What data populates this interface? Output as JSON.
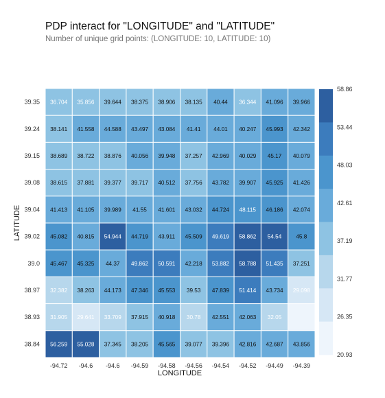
{
  "title": "PDP interact for \"LONGITUDE\" and \"LATITUDE\"",
  "subtitle": "Number of unique grid points: (LONGITUDE: 10, LATITUDE: 10)",
  "chart_data": {
    "type": "heatmap",
    "xlabel": "LONGITUDE",
    "ylabel": "LATITUDE",
    "x": [
      "-94.72",
      "-94.6",
      "-94.6",
      "-94.59",
      "-94.58",
      "-94.56",
      "-94.54",
      "-94.52",
      "-94.49",
      "-94.39"
    ],
    "y": [
      "39.35",
      "39.24",
      "39.15",
      "39.08",
      "39.04",
      "39.02",
      "39.0",
      "38.97",
      "38.93",
      "38.84"
    ],
    "values": [
      [
        "36.704",
        "35.856",
        "39.644",
        "38.375",
        "38.906",
        "38.135",
        "40.44",
        "36.344",
        "41.096",
        "39.966"
      ],
      [
        "38.141",
        "41.558",
        "44.588",
        "43.497",
        "43.084",
        "41.41",
        "44.01",
        "40.247",
        "45.993",
        "42.342"
      ],
      [
        "38.689",
        "38.722",
        "38.876",
        "40.056",
        "39.948",
        "37.257",
        "42.969",
        "40.029",
        "45.17",
        "40.079"
      ],
      [
        "38.615",
        "37.881",
        "39.377",
        "39.717",
        "40.512",
        "37.756",
        "43.782",
        "39.907",
        "45.925",
        "41.426"
      ],
      [
        "41.413",
        "41.105",
        "39.989",
        "41.55",
        "41.601",
        "43.032",
        "44.724",
        "48.115",
        "46.186",
        "42.074"
      ],
      [
        "45.082",
        "40.815",
        "54.944",
        "44.719",
        "43.911",
        "45.509",
        "49.619",
        "58.862",
        "54.54",
        "45.8"
      ],
      [
        "45.467",
        "45.325",
        "44.37",
        "49.862",
        "50.591",
        "42.218",
        "53.882",
        "58.788",
        "51.435",
        "37.251"
      ],
      [
        "32.382",
        "38.263",
        "44.173",
        "47.346",
        "45.553",
        "39.53",
        "47.839",
        "51.414",
        "43.734",
        "29.098"
      ],
      [
        "31.905",
        "29.641",
        "33.709",
        "37.915",
        "40.918",
        "30.78",
        "42.551",
        "42.063",
        "32.05",
        null
      ],
      [
        "56.259",
        "55.028",
        "37.345",
        "38.205",
        "45.565",
        "39.077",
        "39.396",
        "42.816",
        "42.687",
        "43.856"
      ]
    ],
    "colorbar": {
      "ticks": [
        "58.86",
        "53.44",
        "48.03",
        "42.61",
        "37.19",
        "31.77",
        "26.35",
        "20.93"
      ],
      "colors_top_to_bottom": [
        "#2d5fa0",
        "#3c7cbd",
        "#4b95cd",
        "#69abda",
        "#8ec3e3",
        "#b7d7ec",
        "#d6e7f5",
        "#eef5fc"
      ]
    },
    "grid": false
  }
}
